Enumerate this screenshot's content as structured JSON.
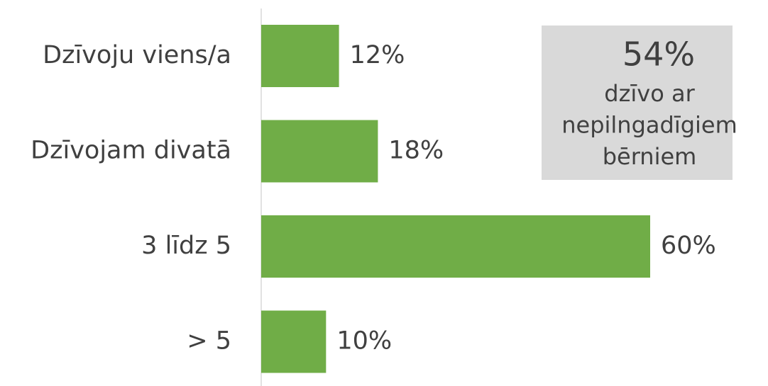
{
  "chart_data": {
    "type": "bar",
    "orientation": "horizontal",
    "categories": [
      "Dzīvoju viens/a",
      "Dzīvojam divatā",
      "3 līdz 5",
      "> 5"
    ],
    "values": [
      12,
      18,
      60,
      10
    ],
    "value_labels": [
      "12%",
      "18%",
      "60%",
      "10%"
    ],
    "color": "#70ad47",
    "annotation": {
      "headline": "54%",
      "lines": [
        "dzīvo ar",
        "nepilngadīgiem",
        "bērniem"
      ]
    }
  }
}
